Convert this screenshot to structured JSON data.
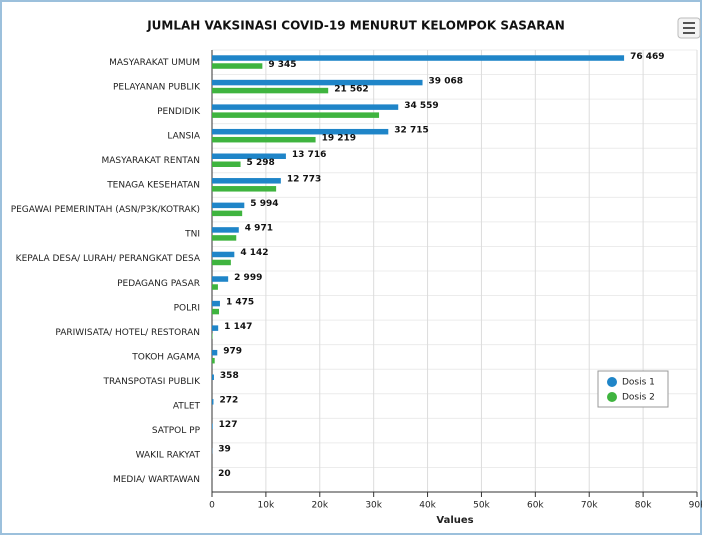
{
  "chart_data": {
    "type": "bar",
    "orientation": "horizontal",
    "title": "JUMLAH VAKSINASI COVID-19 MENURUT KELOMPOK SASARAN",
    "x_label": "Values",
    "categories": [
      "MASYARAKAT UMUM",
      "PELAYANAN PUBLIK",
      "PENDIDIK",
      "LANSIA",
      "MASYARAKAT RENTAN",
      "TENAGA KESEHATAN",
      "PEGAWAI PEMERINTAH (ASN/P3K/KOTRAK)",
      "TNI",
      "KEPALA DESA/ LURAH/ PERANGKAT DESA",
      "PEDAGANG PASAR",
      "POLRI",
      "PARIWISATA/ HOTEL/ RESTORAN",
      "TOKOH AGAMA",
      "TRANSPOTASI PUBLIK",
      "ATLET",
      "SATPOL PP",
      "WAKIL RAKYAT",
      "MEDIA/ WARTAWAN"
    ],
    "series": [
      {
        "name": "Dosis 1",
        "color": "#1f85c8",
        "values": [
          76469,
          39068,
          34559,
          32715,
          13716,
          12773,
          5994,
          4971,
          4142,
          2999,
          1475,
          1147,
          979,
          358,
          272,
          127,
          39,
          20
        ],
        "value_labels": [
          "76 469",
          "39 068",
          "34 559",
          "32 715",
          "13 716",
          "12 773",
          "5 994",
          "4 971",
          "4 142",
          "2 999",
          "1 475",
          "1 147",
          "979",
          "358",
          "272",
          "127",
          "39",
          "20"
        ]
      },
      {
        "name": "Dosis 2",
        "color": "#3fb43f",
        "values": [
          9345,
          21562,
          31000,
          19219,
          5298,
          11900,
          5600,
          4500,
          3500,
          1100,
          1300,
          100,
          500,
          0,
          0,
          0,
          0,
          0
        ],
        "value_labels": [
          "9 345",
          "21 562",
          null,
          "19 219",
          "5 298",
          null,
          null,
          null,
          null,
          null,
          null,
          null,
          null,
          null,
          null,
          null,
          null,
          null
        ]
      }
    ],
    "xlim": [
      0,
      90000
    ],
    "xticks": [
      0,
      {
        "value": 10000,
        "label": "10k"
      },
      {
        "value": 20000,
        "label": "20k"
      },
      {
        "value": 30000,
        "label": "30k"
      },
      {
        "value": 40000,
        "label": "40k"
      },
      {
        "value": 50000,
        "label": "50k"
      },
      {
        "value": 60000,
        "label": "60k"
      },
      {
        "value": 70000,
        "label": "70k"
      },
      {
        "value": 80000,
        "label": "80k"
      },
      {
        "value": 90000,
        "label": "90k"
      }
    ],
    "grid": true,
    "legend": "bottom-right"
  }
}
